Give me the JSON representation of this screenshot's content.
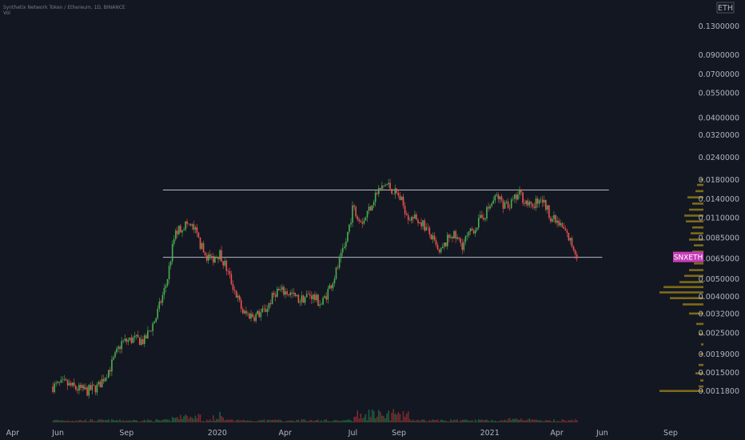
{
  "header": {
    "title": "Synthetix Network Token / Ethereum, 1D, BINANCE",
    "subtitle": "Vol"
  },
  "currency_label": "ETH",
  "colors": {
    "background": "#131722",
    "up": "#26a69a",
    "up_bright": "#4caf50",
    "down": "#ef5350",
    "volume_profile": "#7d6a1a",
    "badge": "#c53cb6",
    "level_line": "#d1d4dc",
    "axis_text": "#b2b5be"
  },
  "chart_data": {
    "type": "candlestick",
    "scale": "log",
    "symbol": "SNXETH",
    "last_price_badge": "SNXETH",
    "ylim": [
      0.00105,
      0.145
    ],
    "y_ticks": [
      "0.1300000",
      "0.0900000",
      "0.0700000",
      "0.0550000",
      "0.0400000",
      "0.0320000",
      "0.0240000",
      "0.0180000",
      "0.0140000",
      "0.0110000",
      "0.0085000",
      "0.0065000",
      "0.0050000",
      "0.0040000",
      "0.0032000",
      "0.0025000",
      "0.0019000",
      "0.0015000",
      "0.0011800"
    ],
    "x_ticks": [
      "Apr",
      "Jun",
      "Sep",
      "2020",
      "Apr",
      "Jul",
      "Sep",
      "2021",
      "Apr",
      "Jun",
      "Sep"
    ],
    "x_range": [
      "2019-03-15",
      "2021-10-15"
    ],
    "horizontal_levels": [
      {
        "price": 0.0157,
        "from": "2019-10-20",
        "to": "2021-06-10"
      },
      {
        "price": 0.0066,
        "from": "2019-10-20",
        "to": "2021-06-01"
      }
    ],
    "close_path": [
      [
        "2019-05-25",
        0.00125
      ],
      [
        "2019-06-10",
        0.0013
      ],
      [
        "2019-06-25",
        0.00122
      ],
      [
        "2019-07-10",
        0.00118
      ],
      [
        "2019-07-25",
        0.00125
      ],
      [
        "2019-08-10",
        0.0016
      ],
      [
        "2019-08-25",
        0.0022
      ],
      [
        "2019-09-10",
        0.0023
      ],
      [
        "2019-09-25",
        0.00225
      ],
      [
        "2019-10-10",
        0.003
      ],
      [
        "2019-10-25",
        0.0048
      ],
      [
        "2019-11-05",
        0.009
      ],
      [
        "2019-11-20",
        0.0102
      ],
      [
        "2019-12-01",
        0.0095
      ],
      [
        "2019-12-15",
        0.0068
      ],
      [
        "2019-12-25",
        0.0065
      ],
      [
        "2020-01-05",
        0.007
      ],
      [
        "2020-01-20",
        0.0048
      ],
      [
        "2020-02-05",
        0.0032
      ],
      [
        "2020-02-20",
        0.0031
      ],
      [
        "2020-03-05",
        0.0033
      ],
      [
        "2020-03-20",
        0.0043
      ],
      [
        "2020-04-05",
        0.0042
      ],
      [
        "2020-04-20",
        0.0038
      ],
      [
        "2020-05-05",
        0.0041
      ],
      [
        "2020-05-20",
        0.0036
      ],
      [
        "2020-06-05",
        0.005
      ],
      [
        "2020-06-20",
        0.0075
      ],
      [
        "2020-07-01",
        0.0125
      ],
      [
        "2020-07-15",
        0.0105
      ],
      [
        "2020-08-01",
        0.015
      ],
      [
        "2020-08-15",
        0.017
      ],
      [
        "2020-09-01",
        0.0145
      ],
      [
        "2020-09-15",
        0.011
      ],
      [
        "2020-10-01",
        0.0105
      ],
      [
        "2020-10-15",
        0.0085
      ],
      [
        "2020-10-25",
        0.0068
      ],
      [
        "2020-11-10",
        0.009
      ],
      [
        "2020-11-25",
        0.0078
      ],
      [
        "2020-12-10",
        0.0095
      ],
      [
        "2020-12-25",
        0.0115
      ],
      [
        "2021-01-10",
        0.0145
      ],
      [
        "2021-01-25",
        0.0125
      ],
      [
        "2021-02-10",
        0.015
      ],
      [
        "2021-02-25",
        0.0125
      ],
      [
        "2021-03-10",
        0.0145
      ],
      [
        "2021-03-25",
        0.011
      ],
      [
        "2021-04-10",
        0.0095
      ],
      [
        "2021-04-20",
        0.008
      ],
      [
        "2021-04-30",
        0.0066
      ]
    ]
  }
}
